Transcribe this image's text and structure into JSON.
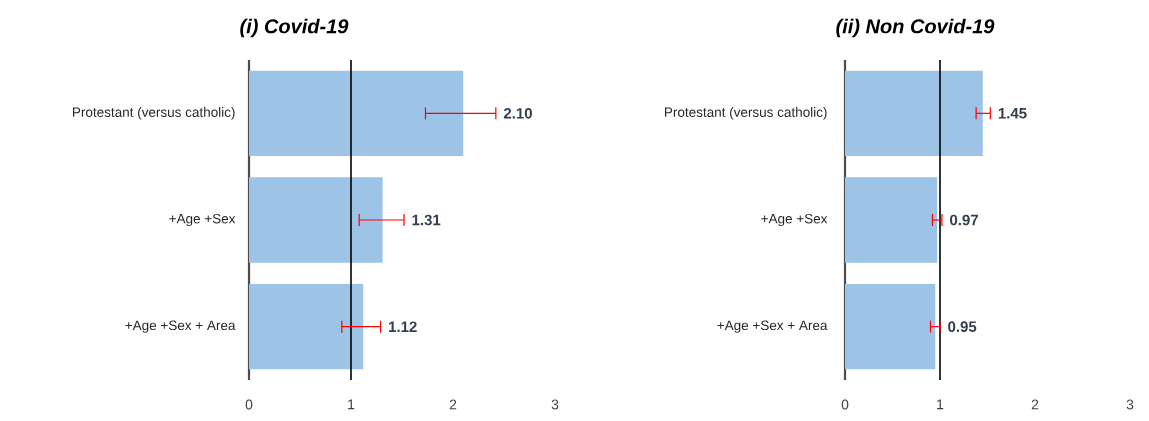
{
  "chart_data": [
    {
      "type": "bar",
      "orientation": "horizontal",
      "title": "(i) Covid-19",
      "categories": [
        "Protestant (versus catholic)",
        "+Age +Sex",
        "+Age +Sex + Area"
      ],
      "values": [
        2.1,
        1.31,
        1.12
      ],
      "value_labels": [
        "2.10",
        "1.31",
        "1.12"
      ],
      "errors": [
        [
          1.73,
          2.42
        ],
        [
          1.08,
          1.52
        ],
        [
          0.91,
          1.29
        ]
      ],
      "color": "#9dc3e6",
      "xlim": [
        0,
        3
      ],
      "xticks": [
        0,
        1,
        2,
        3
      ],
      "ref_lines": [
        {
          "axis": "x",
          "value": 1,
          "color": "#000000"
        }
      ]
    },
    {
      "type": "bar",
      "orientation": "horizontal",
      "title": "(ii) Non Covid-19",
      "categories": [
        "Protestant (versus catholic)",
        "+Age +Sex",
        "+Age +Sex + Area"
      ],
      "values": [
        1.45,
        0.97,
        0.95
      ],
      "value_labels": [
        "1.45",
        "0.97",
        "0.95"
      ],
      "errors": [
        [
          1.38,
          1.53
        ],
        [
          0.92,
          1.02
        ],
        [
          0.9,
          1.0
        ]
      ],
      "color": "#9dc3e6",
      "xlim": [
        0,
        3
      ],
      "xticks": [
        0,
        1,
        2,
        3
      ],
      "ref_lines": [
        {
          "axis": "x",
          "value": 1,
          "color": "#000000"
        }
      ]
    }
  ]
}
